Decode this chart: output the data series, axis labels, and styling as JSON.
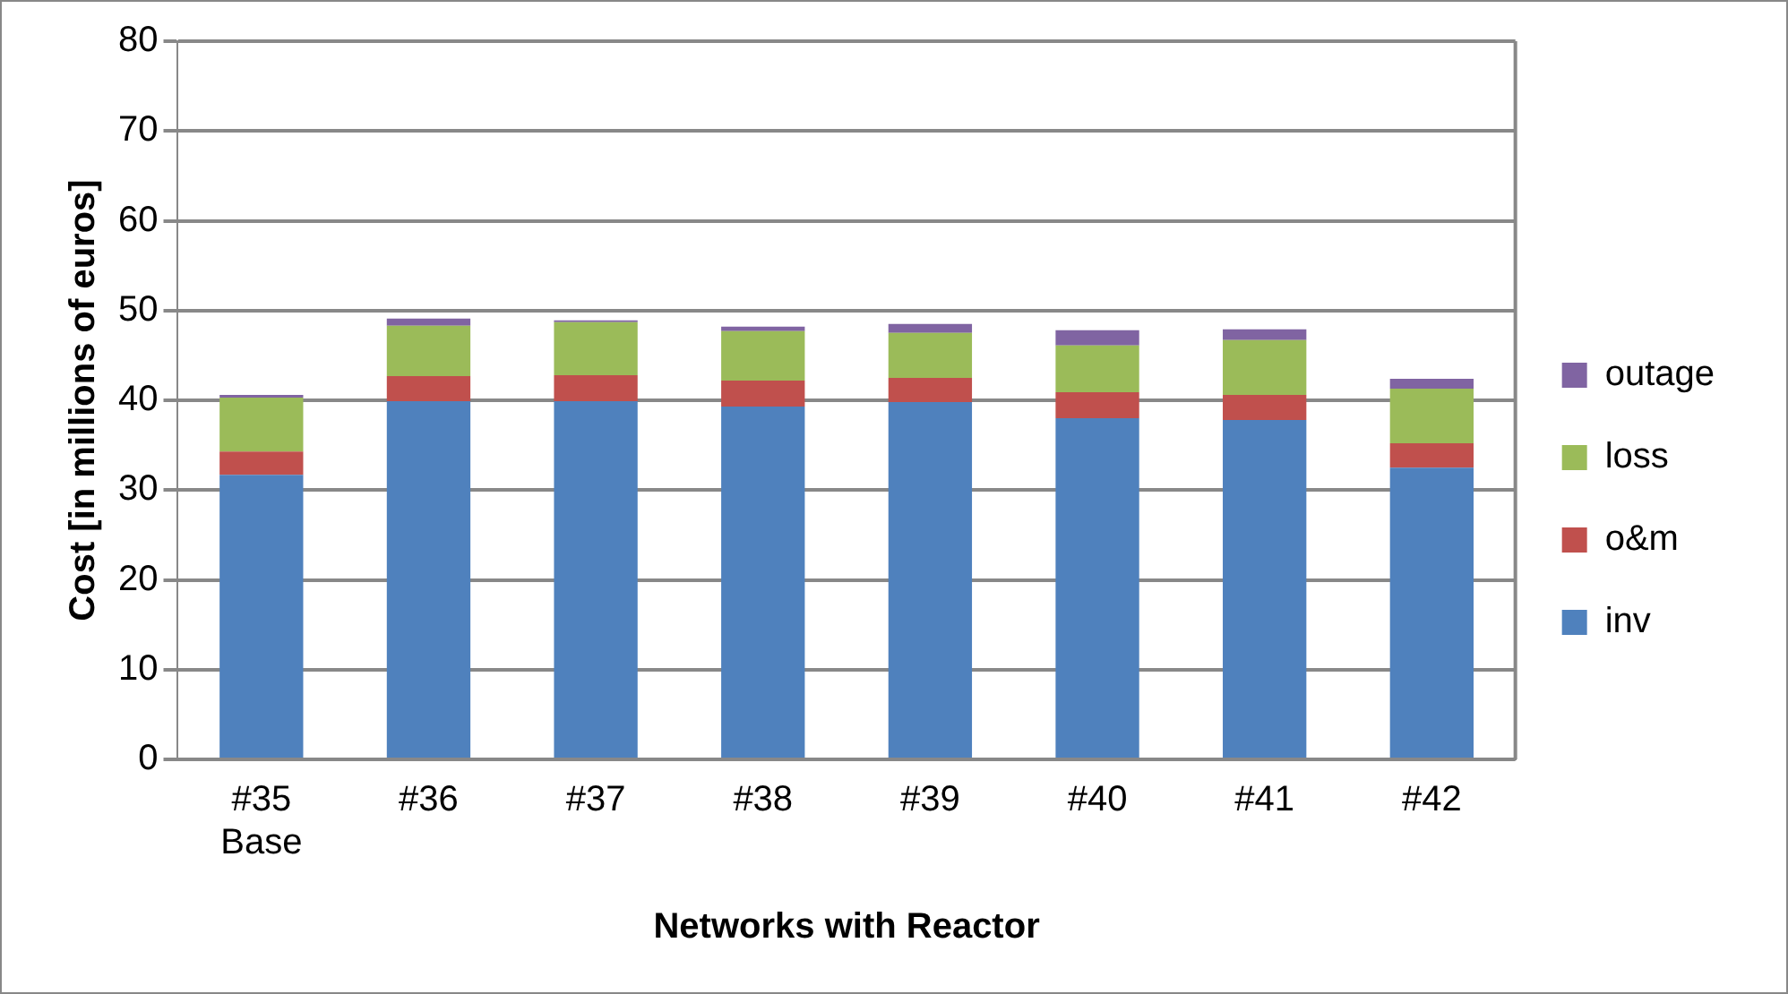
{
  "chart_data": {
    "type": "bar",
    "stacked": true,
    "xlabel": "Networks with Reactor",
    "ylabel": "Cost [in millions of euros]",
    "categories": [
      "#35\nBase",
      "#36",
      "#37",
      "#38",
      "#39",
      "#40",
      "#41",
      "#42"
    ],
    "series": [
      {
        "name": "inv",
        "color": "#4f81bd",
        "values": [
          31.7,
          39.9,
          39.9,
          39.3,
          39.8,
          38.0,
          37.8,
          32.5
        ]
      },
      {
        "name": "o&m",
        "color": "#c0504d",
        "values": [
          2.6,
          2.8,
          2.9,
          2.9,
          2.7,
          2.9,
          2.8,
          2.7
        ]
      },
      {
        "name": "loss",
        "color": "#9bbb59",
        "values": [
          6.0,
          5.6,
          5.9,
          5.5,
          5.0,
          5.2,
          6.1,
          6.1
        ]
      },
      {
        "name": "outage",
        "color": "#8064a2",
        "values": [
          0.3,
          0.8,
          0.2,
          0.5,
          1.0,
          1.7,
          1.2,
          1.1
        ]
      }
    ],
    "ylim": [
      0,
      80
    ],
    "yticks": [
      0,
      10,
      20,
      30,
      40,
      50,
      60,
      70,
      80
    ],
    "grid": "y",
    "legend": "right"
  }
}
